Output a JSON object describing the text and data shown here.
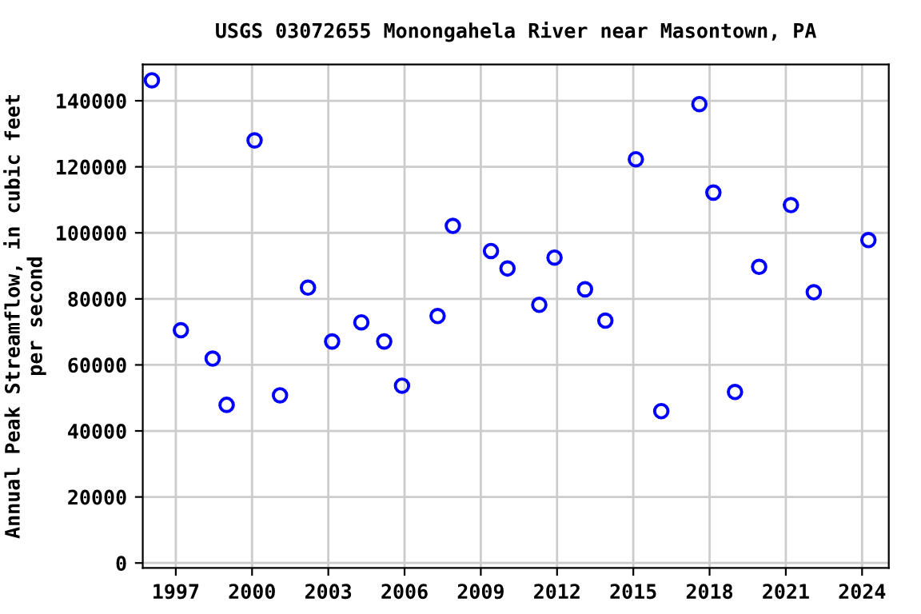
{
  "chart_data": {
    "type": "scatter",
    "title": "USGS 03072655 Monongahela River near Masontown, PA",
    "ylabel": "Annual Peak Streamflow, in cubic feet\nper second",
    "x": [
      1996.06,
      1997.2,
      1998.45,
      1999.0,
      2000.1,
      2001.1,
      2002.2,
      2003.15,
      2004.3,
      2005.2,
      2005.9,
      2007.3,
      2007.9,
      2009.4,
      2010.05,
      2011.3,
      2011.9,
      2013.1,
      2013.9,
      2015.1,
      2016.1,
      2017.6,
      2018.15,
      2019.0,
      2019.95,
      2021.2,
      2022.1,
      2024.25
    ],
    "series": [
      {
        "color": "#0000ff",
        "values": [
          146200,
          70500,
          61900,
          47900,
          128000,
          50800,
          83400,
          67100,
          72900,
          67100,
          53700,
          74800,
          102100,
          94500,
          89200,
          78200,
          92500,
          82900,
          73400,
          122300,
          46000,
          139000,
          112200,
          51800,
          89700,
          108400,
          82000,
          97800
        ]
      }
    ],
    "xlim": [
      1995.7,
      2025.05
    ],
    "ylim": [
      -1500,
      151000
    ],
    "xticks": [
      1997,
      2000,
      2003,
      2006,
      2009,
      2012,
      2015,
      2018,
      2021,
      2024
    ],
    "yticks": [
      0,
      20000,
      40000,
      60000,
      80000,
      100000,
      120000,
      140000
    ],
    "grid": true,
    "marker": "circle"
  }
}
